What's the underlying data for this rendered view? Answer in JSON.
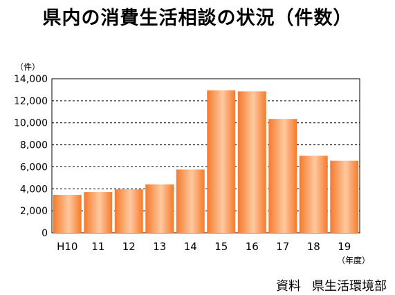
{
  "title": "県内の消費生活相談の状況（件数）",
  "source": {
    "prefix": "資料",
    "name": "県生活環境部"
  },
  "chart_data": {
    "type": "bar",
    "title": "県内の消費生活相談の状況（件数）",
    "ylabel": "（件）",
    "xlabel": "（年度）",
    "categories": [
      "H10",
      "11",
      "12",
      "13",
      "14",
      "15",
      "16",
      "17",
      "18",
      "19"
    ],
    "values": [
      3450,
      3700,
      3950,
      4400,
      5750,
      12950,
      12850,
      10350,
      7000,
      6550
    ],
    "ylim": [
      0,
      14000
    ],
    "yticks": [
      0,
      2000,
      4000,
      6000,
      8000,
      10000,
      12000,
      14000
    ],
    "ytick_labels": [
      "0",
      "2,000",
      "4,000",
      "6,000",
      "8,000",
      "10,000",
      "12,000",
      "14,000"
    ],
    "grid": true,
    "bar_color": "#f47a2c",
    "bar_highlight": "#ffc9a0"
  }
}
